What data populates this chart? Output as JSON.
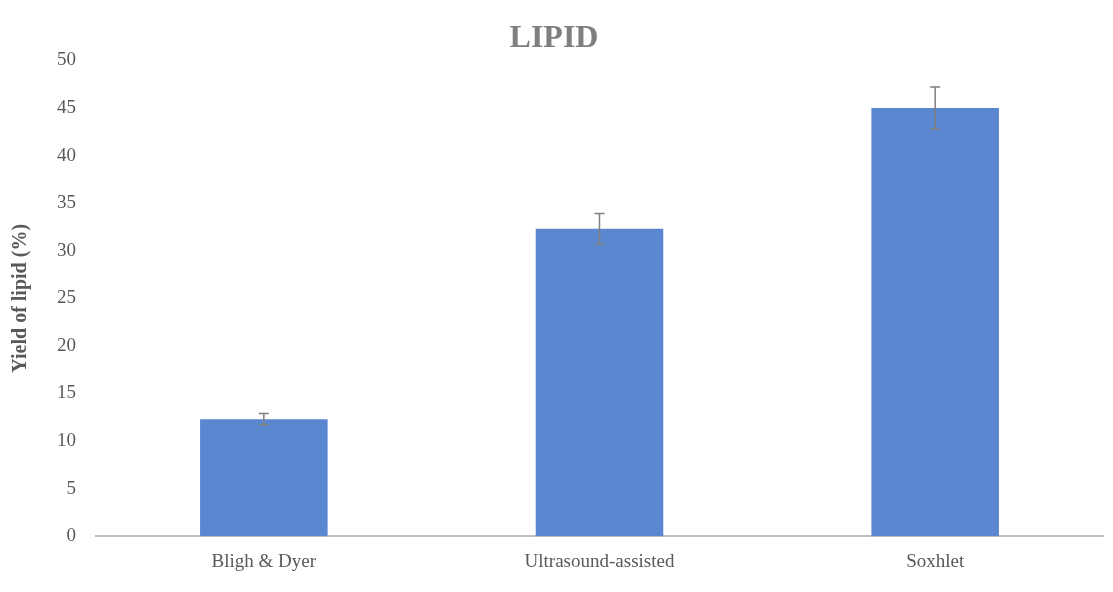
{
  "chart_data": {
    "type": "bar",
    "title": "LIPID",
    "ylabel": "Yield of lipid (%)",
    "categories": [
      "Bligh & Dyer",
      "Ultrasound-assisted",
      "Soxhlet"
    ],
    "values": [
      12.3,
      32.3,
      45.0
    ],
    "errors": [
      0.6,
      1.6,
      2.2
    ],
    "color": "#5b87d0",
    "ylim": [
      0,
      50
    ],
    "yticks": [
      0,
      5,
      10,
      15,
      20,
      25,
      30,
      35,
      40,
      45,
      50
    ],
    "grid": false,
    "legend": false
  }
}
